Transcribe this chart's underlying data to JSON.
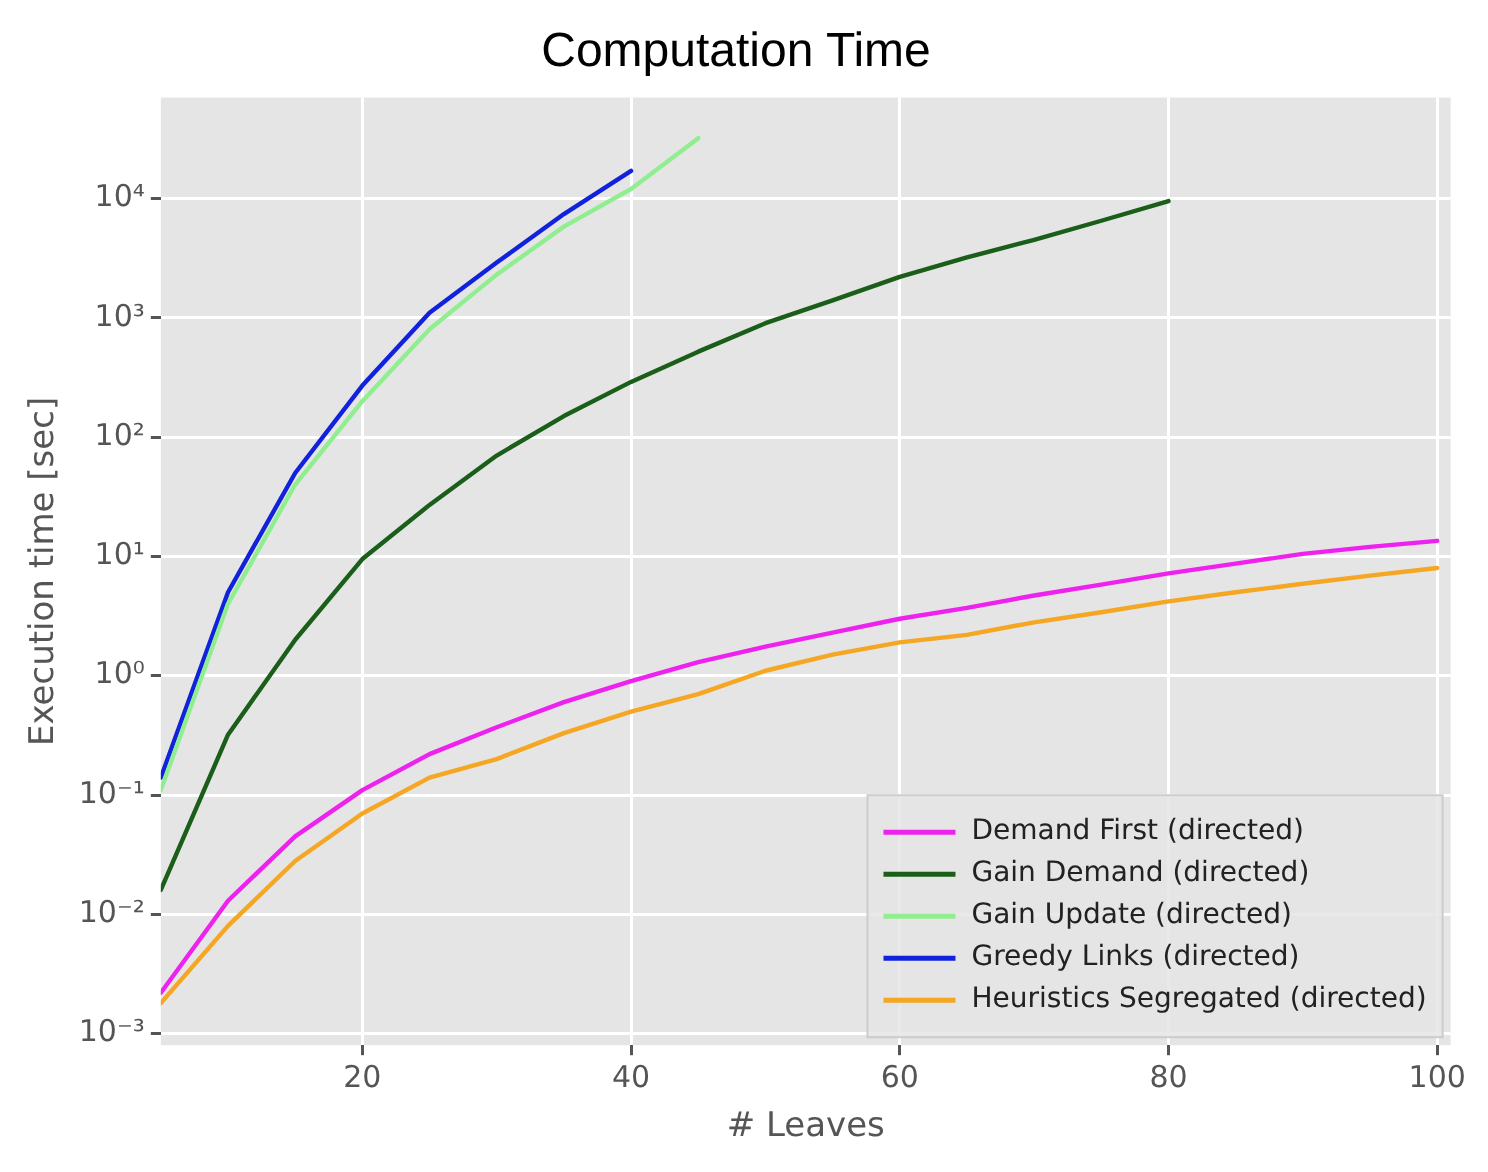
{
  "chart_data": {
    "type": "line",
    "title": "Computation Time",
    "xlabel": "# Leaves",
    "ylabel": "Execution time [sec]",
    "log": "y",
    "grid": true,
    "legend": "bottom right",
    "line_style": "solid",
    "marker": "none",
    "x": [
      5,
      10,
      15,
      20,
      25,
      30,
      35,
      40,
      45,
      50,
      55,
      60,
      65,
      70,
      75,
      80,
      85,
      90,
      95,
      100
    ],
    "xlim": [
      5,
      101
    ],
    "xticks": [
      20,
      40,
      60,
      80,
      100
    ],
    "ylim": [
      0.0008,
      70000
    ],
    "yticks": [
      {
        "value": 0.001,
        "label": "10⁻³"
      },
      {
        "value": 0.01,
        "label": "10⁻²"
      },
      {
        "value": 0.1,
        "label": "10⁻¹"
      },
      {
        "value": 1,
        "label": "10⁰"
      },
      {
        "value": 10,
        "label": "10¹"
      },
      {
        "value": 100,
        "label": "10²"
      },
      {
        "value": 1000,
        "label": "10³"
      },
      {
        "value": 10000,
        "label": "10⁴"
      }
    ],
    "series": [
      {
        "name": "Demand First (directed)",
        "color": "#ee22ee",
        "values": [
          0.0022,
          0.013,
          0.045,
          0.11,
          0.22,
          0.37,
          0.6,
          0.9,
          1.3,
          1.75,
          2.3,
          3,
          3.7,
          4.7,
          5.8,
          7.2,
          8.7,
          10.5,
          12,
          13.5
        ]
      },
      {
        "name": "Gain Demand (directed)",
        "color": "#1a5e1a",
        "values": [
          0.016,
          0.32,
          2,
          9.5,
          27,
          70,
          150,
          290,
          520,
          900,
          1400,
          2200,
          3200,
          4500,
          6500,
          9500,
          null,
          null,
          null,
          null
        ]
      },
      {
        "name": "Gain Update (directed)",
        "color": "#90ee90",
        "values": [
          0.11,
          4,
          40,
          200,
          800,
          2300,
          5800,
          12000,
          32000,
          null,
          null,
          null,
          null,
          null,
          null,
          null,
          null,
          null,
          null,
          null
        ]
      },
      {
        "name": "Greedy Links (directed)",
        "color": "#1122dd",
        "values": [
          0.14,
          5,
          50,
          270,
          1100,
          2900,
          7400,
          17000,
          null,
          null,
          null,
          null,
          null,
          null,
          null,
          null,
          null,
          null,
          null,
          null
        ]
      },
      {
        "name": "Heuristics Segregated (directed)",
        "color": "#f5a623",
        "values": [
          0.0018,
          0.008,
          0.028,
          0.07,
          0.14,
          0.2,
          0.33,
          0.5,
          0.7,
          1.1,
          1.5,
          1.9,
          2.2,
          2.8,
          3.4,
          4.2,
          5.0,
          5.9,
          6.9,
          8
        ]
      }
    ]
  }
}
